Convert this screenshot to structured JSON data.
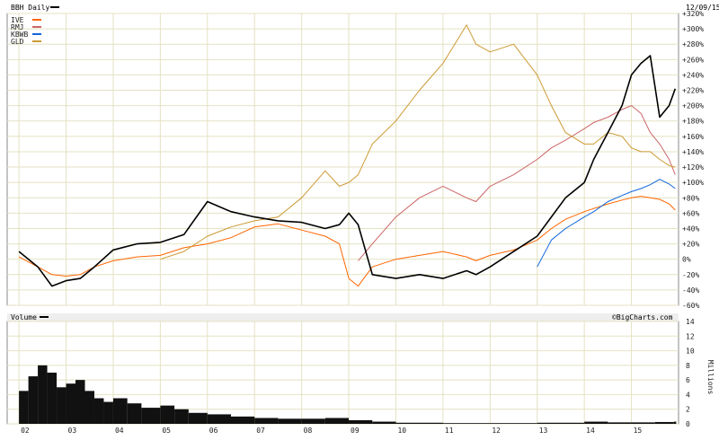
{
  "chart_data": [
    {
      "type": "line",
      "title": "BBH Daily",
      "date": "12/09/15",
      "ylim": [
        -60,
        320
      ],
      "y_unit": "%",
      "y_ticks": [
        "+320%",
        "+300%",
        "+280%",
        "+260%",
        "+240%",
        "+220%",
        "+200%",
        "+180%",
        "+160%",
        "+140%",
        "+120%",
        "+100%",
        "+80%",
        "+60%",
        "+40%",
        "+20%",
        "0%",
        "-20%",
        "-40%",
        "-60%"
      ],
      "x_ticks": [
        "02",
        "03",
        "04",
        "05",
        "06",
        "07",
        "08",
        "09",
        "10",
        "11",
        "12",
        "13",
        "14",
        "15"
      ],
      "grid": true,
      "legend_position": "top-left",
      "x": [
        2002.0,
        2002.4,
        2002.7,
        2003.0,
        2003.3,
        2003.6,
        2004.0,
        2004.5,
        2005.0,
        2005.5,
        2006.0,
        2006.5,
        2007.0,
        2007.5,
        2008.0,
        2008.5,
        2008.8,
        2009.0,
        2009.2,
        2009.5,
        2010.0,
        2010.5,
        2011.0,
        2011.5,
        2011.7,
        2012.0,
        2012.5,
        2013.0,
        2013.3,
        2013.6,
        2014.0,
        2014.2,
        2014.5,
        2014.8,
        2015.0,
        2015.2,
        2015.4,
        2015.6,
        2015.8,
        2015.93
      ],
      "series": [
        {
          "name": "IVE",
          "color": "#ff6600",
          "values": [
            3,
            -10,
            -20,
            -22,
            -20,
            -10,
            -2,
            3,
            5,
            15,
            20,
            28,
            42,
            46,
            38,
            30,
            20,
            -25,
            -35,
            -10,
            0,
            5,
            10,
            3,
            -2,
            5,
            12,
            25,
            40,
            52,
            62,
            66,
            72,
            77,
            80,
            82,
            80,
            78,
            72,
            64
          ]
        },
        {
          "name": "RMJ",
          "color": "#cc6666",
          "values": [
            null,
            null,
            null,
            null,
            null,
            null,
            null,
            null,
            null,
            null,
            null,
            null,
            null,
            null,
            null,
            null,
            null,
            null,
            -2,
            20,
            55,
            80,
            95,
            80,
            75,
            95,
            110,
            130,
            145,
            155,
            170,
            178,
            185,
            195,
            200,
            190,
            165,
            150,
            130,
            110
          ]
        },
        {
          "name": "KBWB",
          "color": "#1166dd",
          "values": [
            null,
            null,
            null,
            null,
            null,
            null,
            null,
            null,
            null,
            null,
            null,
            null,
            null,
            null,
            null,
            null,
            null,
            null,
            null,
            null,
            null,
            null,
            null,
            null,
            null,
            null,
            null,
            -10,
            25,
            40,
            55,
            62,
            75,
            83,
            88,
            92,
            97,
            104,
            98,
            92
          ]
        },
        {
          "name": "GLD",
          "color": "#cc9933",
          "values": [
            null,
            null,
            null,
            null,
            null,
            null,
            null,
            null,
            0,
            10,
            30,
            42,
            50,
            55,
            80,
            115,
            95,
            100,
            110,
            150,
            180,
            220,
            255,
            305,
            280,
            270,
            280,
            240,
            200,
            165,
            150,
            150,
            165,
            160,
            145,
            140,
            140,
            130,
            122,
            120
          ]
        },
        {
          "name": "BBH",
          "color": "#000000",
          "values": [
            10,
            -10,
            -35,
            -28,
            -25,
            -10,
            12,
            20,
            22,
            32,
            75,
            62,
            55,
            50,
            48,
            40,
            45,
            60,
            45,
            -20,
            -25,
            -20,
            -25,
            -15,
            -20,
            -10,
            10,
            30,
            55,
            80,
            100,
            130,
            165,
            200,
            240,
            255,
            265,
            185,
            200,
            222
          ]
        }
      ]
    },
    {
      "type": "bar",
      "title": "Volume",
      "ylabel": "Millions",
      "ylim": [
        0,
        14
      ],
      "y_ticks": [
        "14",
        "12",
        "10",
        "8",
        "6",
        "4",
        "2",
        "0"
      ],
      "credit": "©BigCharts.com",
      "x": [
        2002.0,
        2002.2,
        2002.4,
        2002.6,
        2002.8,
        2003.0,
        2003.2,
        2003.4,
        2003.6,
        2003.8,
        2004.0,
        2004.3,
        2004.6,
        2005.0,
        2005.3,
        2005.6,
        2006.0,
        2006.5,
        2007.0,
        2007.5,
        2008.0,
        2008.5,
        2009.0,
        2009.5,
        2010.0,
        2011.0,
        2012.0,
        2013.0,
        2014.0,
        2014.5,
        2015.0,
        2015.5,
        2015.9
      ],
      "values": [
        4.5,
        6.5,
        8.0,
        7.0,
        5.0,
        5.5,
        6.0,
        4.5,
        3.5,
        3.0,
        3.5,
        2.8,
        2.2,
        2.5,
        2.0,
        1.5,
        1.3,
        1.0,
        0.8,
        0.7,
        0.7,
        0.8,
        0.5,
        0.3,
        0.15,
        0.1,
        0.1,
        0.15,
        0.3,
        0.2,
        0.2,
        0.25,
        0.3
      ]
    }
  ]
}
